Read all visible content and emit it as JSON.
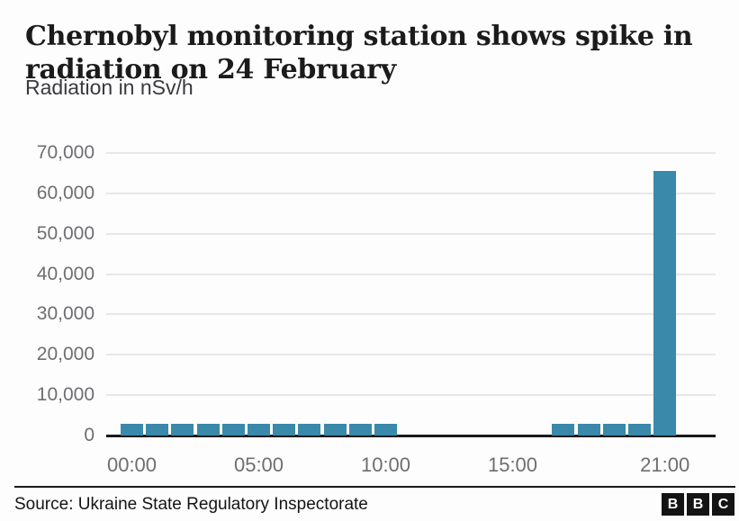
{
  "header": {
    "title_lines": [
      "Chernobyl monitoring station shows spike in",
      "radiation on 24 February"
    ],
    "subtitle": "Radiation in nSv/h"
  },
  "chart_data": {
    "type": "bar",
    "title": "Chernobyl monitoring station shows spike in radiation on 24 February",
    "subtitle": "Radiation in nSv/h",
    "ylabel": "Radiation in nSv/h",
    "xlabel": "",
    "ylim": [
      0,
      70000
    ],
    "yticks": [
      0,
      10000,
      20000,
      30000,
      40000,
      50000,
      60000,
      70000
    ],
    "ytick_labels": [
      "0",
      "10,000",
      "20,000",
      "30,000",
      "40,000",
      "50,000",
      "60,000",
      "70,000"
    ],
    "xticks": [
      {
        "hour": 0,
        "label": "00:00"
      },
      {
        "hour": 5,
        "label": "05:00"
      },
      {
        "hour": 10,
        "label": "10:00"
      },
      {
        "hour": 15,
        "label": "15:00"
      },
      {
        "hour": 21,
        "label": "21:00"
      }
    ],
    "points": [
      {
        "hour": 0,
        "label": "00:00",
        "value": 3000
      },
      {
        "hour": 1,
        "label": "01:00",
        "value": 3000
      },
      {
        "hour": 2,
        "label": "02:00",
        "value": 3000
      },
      {
        "hour": 3,
        "label": "03:00",
        "value": 3000
      },
      {
        "hour": 4,
        "label": "04:00",
        "value": 3000
      },
      {
        "hour": 5,
        "label": "05:00",
        "value": 3000
      },
      {
        "hour": 6,
        "label": "06:00",
        "value": 3000
      },
      {
        "hour": 7,
        "label": "07:00",
        "value": 3000
      },
      {
        "hour": 8,
        "label": "08:00",
        "value": 3000
      },
      {
        "hour": 9,
        "label": "09:00",
        "value": 3000
      },
      {
        "hour": 10,
        "label": "10:00",
        "value": 3000
      },
      {
        "hour": 17,
        "label": "17:00",
        "value": 3000
      },
      {
        "hour": 18,
        "label": "18:00",
        "value": 3000
      },
      {
        "hour": 19,
        "label": "19:00",
        "value": 3000
      },
      {
        "hour": 20,
        "label": "20:00",
        "value": 3000
      },
      {
        "hour": 21,
        "label": "21:00",
        "value": 65500
      }
    ],
    "grid": "horizontal",
    "legend": "none",
    "bar_color": "#3a89aa",
    "gridline_color": "#e7e7e7",
    "axis_line_color": "#1a1a1a",
    "tick_label_color": "#6e6e72"
  },
  "footer": {
    "source": "Source: Ukraine State Regulatory Inspectorate",
    "logo": {
      "letters": [
        "B",
        "B",
        "C"
      ]
    }
  }
}
